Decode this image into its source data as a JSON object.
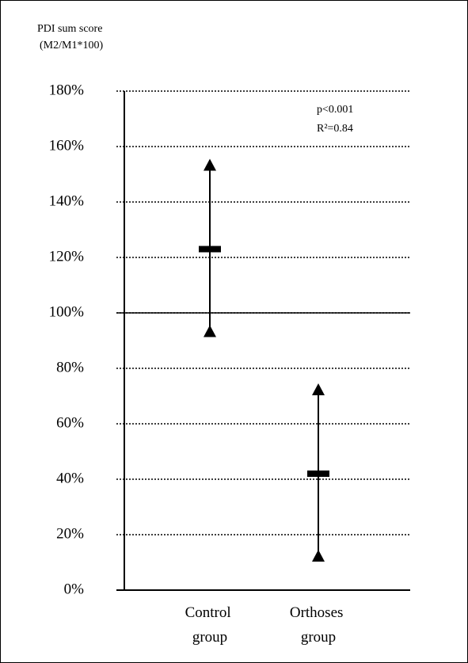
{
  "chart_data": {
    "type": "range",
    "y_title_lines": [
      "PDI sum score",
      "(M2/M1*100)"
    ],
    "annotations": [
      "p<0.001",
      "R²=0.84"
    ],
    "categories": [
      "Control group",
      "Orthoses group"
    ],
    "values": [
      123,
      42
    ],
    "high": [
      153,
      72
    ],
    "low": [
      93,
      12
    ],
    "color": "#000000",
    "reference_line": 100,
    "ylim": [
      0,
      180
    ],
    "yticks": [
      {
        "value": 0,
        "label": "0%"
      },
      {
        "value": 20,
        "label": "20%"
      },
      {
        "value": 40,
        "label": "40%"
      },
      {
        "value": 60,
        "label": "60%"
      },
      {
        "value": 80,
        "label": "80%"
      },
      {
        "value": 100,
        "label": "100%"
      },
      {
        "value": 120,
        "label": "120%"
      },
      {
        "value": 140,
        "label": "140%"
      },
      {
        "value": 160,
        "label": "160%"
      },
      {
        "value": 180,
        "label": "180%"
      }
    ],
    "grid": true
  }
}
